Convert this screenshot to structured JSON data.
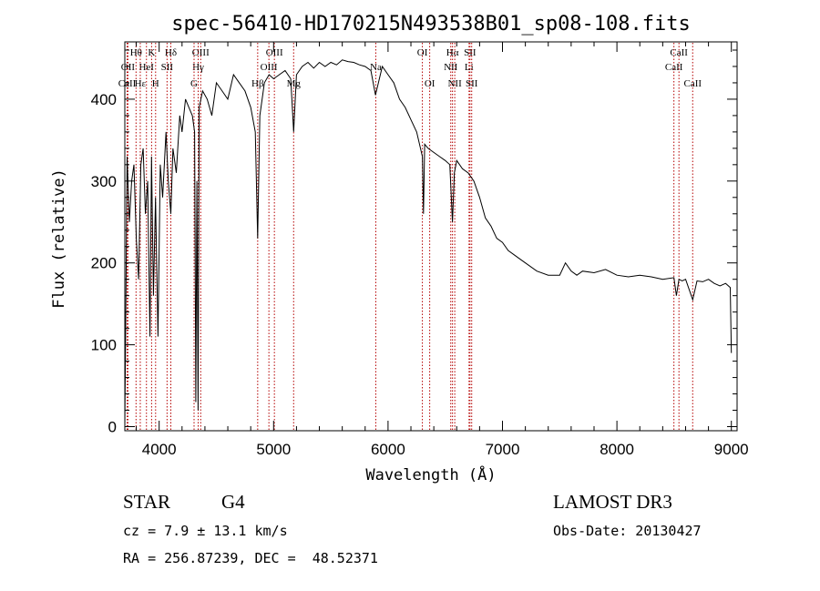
{
  "chart_data": {
    "type": "line",
    "title": "spec-56410-HD170215N493538B01_sp08-108.fits",
    "xlabel": "Wavelength (Å)",
    "ylabel": "Flux (relative)",
    "xlim": [
      3700,
      9050
    ],
    "ylim": [
      -5,
      470
    ],
    "xticks": [
      4000,
      5000,
      6000,
      7000,
      8000,
      9000
    ],
    "yticks": [
      0,
      100,
      200,
      300,
      400
    ],
    "grid": false,
    "series": [
      {
        "name": "flux",
        "x": [
          3700,
          3720,
          3740,
          3760,
          3780,
          3800,
          3820,
          3840,
          3860,
          3880,
          3900,
          3920,
          3933,
          3950,
          3968,
          3990,
          4010,
          4030,
          4060,
          4080,
          4102,
          4120,
          4150,
          4180,
          4200,
          4230,
          4260,
          4290,
          4310,
          4320,
          4330,
          4340,
          4350,
          4380,
          4420,
          4460,
          4500,
          4550,
          4600,
          4650,
          4700,
          4750,
          4800,
          4840,
          4861,
          4880,
          4920,
          4960,
          5000,
          5050,
          5100,
          5150,
          5175,
          5200,
          5250,
          5300,
          5350,
          5400,
          5450,
          5500,
          5550,
          5600,
          5650,
          5700,
          5750,
          5800,
          5850,
          5890,
          5950,
          6000,
          6050,
          6100,
          6150,
          6200,
          6250,
          6300,
          6310,
          6320,
          6350,
          6400,
          6450,
          6500,
          6540,
          6563,
          6580,
          6600,
          6650,
          6700,
          6750,
          6800,
          6850,
          6900,
          6950,
          7000,
          7050,
          7100,
          7150,
          7200,
          7300,
          7400,
          7500,
          7550,
          7600,
          7650,
          7700,
          7800,
          7900,
          8000,
          8100,
          8200,
          8300,
          8400,
          8498,
          8520,
          8542,
          8570,
          8600,
          8662,
          8700,
          8750,
          8800,
          8850,
          8900,
          8950,
          8990,
          9000
        ],
        "values": [
          0,
          330,
          250,
          300,
          320,
          230,
          180,
          320,
          340,
          260,
          300,
          110,
          330,
          160,
          280,
          110,
          320,
          280,
          360,
          300,
          260,
          340,
          310,
          380,
          360,
          400,
          390,
          380,
          360,
          30,
          300,
          20,
          390,
          410,
          400,
          380,
          420,
          410,
          400,
          430,
          420,
          410,
          390,
          360,
          230,
          380,
          420,
          430,
          425,
          430,
          435,
          425,
          360,
          430,
          440,
          445,
          438,
          445,
          440,
          445,
          442,
          448,
          446,
          445,
          442,
          440,
          435,
          405,
          440,
          430,
          420,
          400,
          390,
          375,
          360,
          330,
          260,
          345,
          340,
          335,
          330,
          325,
          320,
          250,
          310,
          325,
          315,
          310,
          300,
          280,
          255,
          245,
          230,
          225,
          215,
          210,
          205,
          200,
          190,
          185,
          185,
          200,
          190,
          185,
          190,
          188,
          192,
          185,
          183,
          185,
          183,
          180,
          182,
          160,
          180,
          178,
          180,
          155,
          178,
          177,
          180,
          175,
          172,
          175,
          170,
          90
        ]
      }
    ],
    "line_markers": [
      {
        "label": "Hθ",
        "x": 3798,
        "row": 1
      },
      {
        "label": "OII",
        "x": 3727,
        "row": 2
      },
      {
        "label": "CaII",
        "x": 3720,
        "row": 3
      },
      {
        "label": "K",
        "x": 3934,
        "row": 1
      },
      {
        "label": "HeI",
        "x": 3889,
        "row": 2
      },
      {
        "label": "Hε",
        "x": 3835,
        "row": 3
      },
      {
        "label": "Hδ",
        "x": 4102,
        "row": 1
      },
      {
        "label": "SII",
        "x": 4069,
        "row": 2
      },
      {
        "label": "H",
        "x": 3969,
        "row": 3
      },
      {
        "label": "OIII",
        "x": 4363,
        "row": 1
      },
      {
        "label": "Hγ",
        "x": 4341,
        "row": 2
      },
      {
        "label": "G",
        "x": 4305,
        "row": 3
      },
      {
        "label": "OIII",
        "x": 5007,
        "row": 1
      },
      {
        "label": "OIII",
        "x": 4959,
        "row": 2
      },
      {
        "label": "Hβ",
        "x": 4861,
        "row": 3
      },
      {
        "label": "Mg",
        "x": 5175,
        "row": 3
      },
      {
        "label": "Na",
        "x": 5893,
        "row": 2
      },
      {
        "label": "OI",
        "x": 6300,
        "row": 1
      },
      {
        "label": "OI",
        "x": 6364,
        "row": 3
      },
      {
        "label": "Hα",
        "x": 6563,
        "row": 1
      },
      {
        "label": "NII",
        "x": 6548,
        "row": 2
      },
      {
        "label": "NII",
        "x": 6583,
        "row": 3
      },
      {
        "label": "SII",
        "x": 6716,
        "row": 1
      },
      {
        "label": "Li",
        "x": 6708,
        "row": 2
      },
      {
        "label": "SII",
        "x": 6731,
        "row": 3
      },
      {
        "label": "CaII",
        "x": 8542,
        "row": 1
      },
      {
        "label": "CaII",
        "x": 8498,
        "row": 2
      },
      {
        "label": "CaII",
        "x": 8662,
        "row": 3
      }
    ]
  },
  "info": {
    "object_class": "STAR",
    "subclass": "G4",
    "survey": "LAMOST DR3",
    "cz": "cz = 7.9 ± 13.1 km/s",
    "obs_date": "Obs-Date: 20130427",
    "coords": "RA = 256.87239, DEC =  48.52371"
  },
  "colors": {
    "axis": "#000000",
    "line": "#000000",
    "marker": "#b40000",
    "background": "#ffffff"
  }
}
